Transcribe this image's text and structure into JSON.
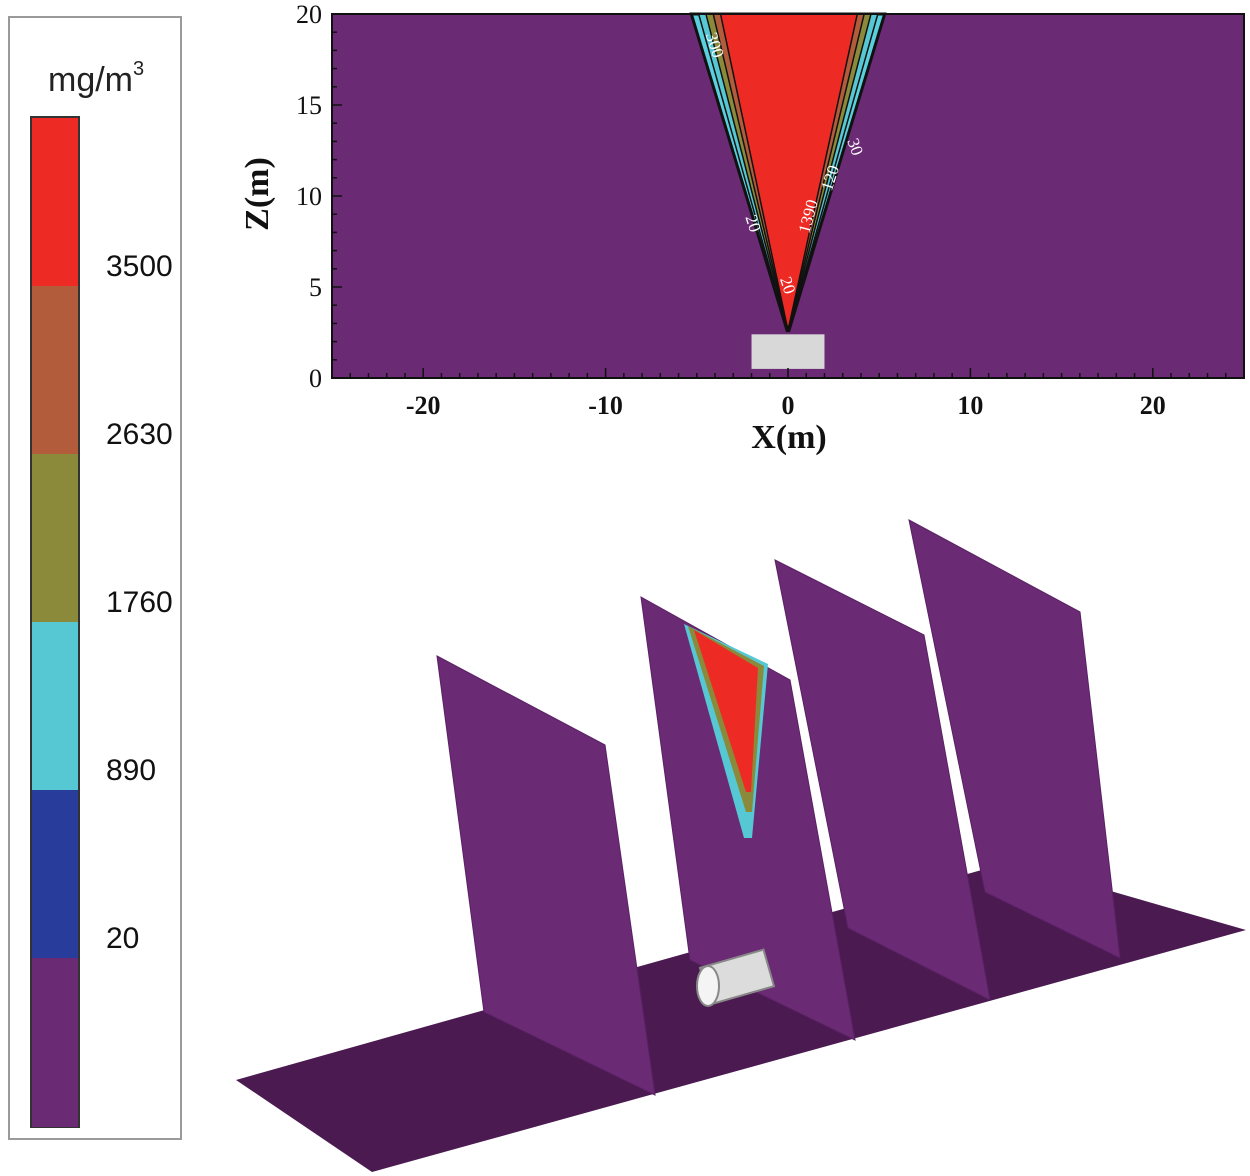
{
  "legend": {
    "unit": "mg/m",
    "unit_exponent": "3",
    "tick_labels": [
      "3500",
      "2630",
      "1760",
      "890",
      "20"
    ],
    "levels": [
      {
        "color": "#ee2a24"
      },
      {
        "color": "#b25c3c"
      },
      {
        "color": "#8a8a3a"
      },
      {
        "color": "#55c8d4"
      },
      {
        "color": "#283c9c"
      },
      {
        "color": "#6a2a74"
      }
    ]
  },
  "chart_data": [
    {
      "type": "heatmap",
      "title": "",
      "xlabel": "X(m)",
      "ylabel": "Z(m)",
      "xlim": [
        -25,
        25
      ],
      "ylim": [
        0,
        20
      ],
      "xticks": [
        -20,
        -10,
        0,
        10,
        20
      ],
      "yticks": [
        0,
        5,
        10,
        15,
        20
      ],
      "background_color": "#6a2a74",
      "contour_labels": [
        "300",
        "30",
        "20",
        "1390",
        "120",
        "20"
      ],
      "plume": {
        "apex": [
          0,
          2.6
        ],
        "top_width_range": [
          -5.3,
          5.3
        ],
        "core_top_range": [
          -3.7,
          3.8
        ]
      },
      "source_box": {
        "x_range": [
          -2,
          2
        ],
        "z_range": [
          0.5,
          2.4
        ],
        "color": "#d8d8d8"
      }
    },
    {
      "type": "heatmap",
      "title": "",
      "description_view": "3D",
      "plane_color": "#6a2a74",
      "floor_color": "#4a1a50",
      "planes": 4
    }
  ]
}
